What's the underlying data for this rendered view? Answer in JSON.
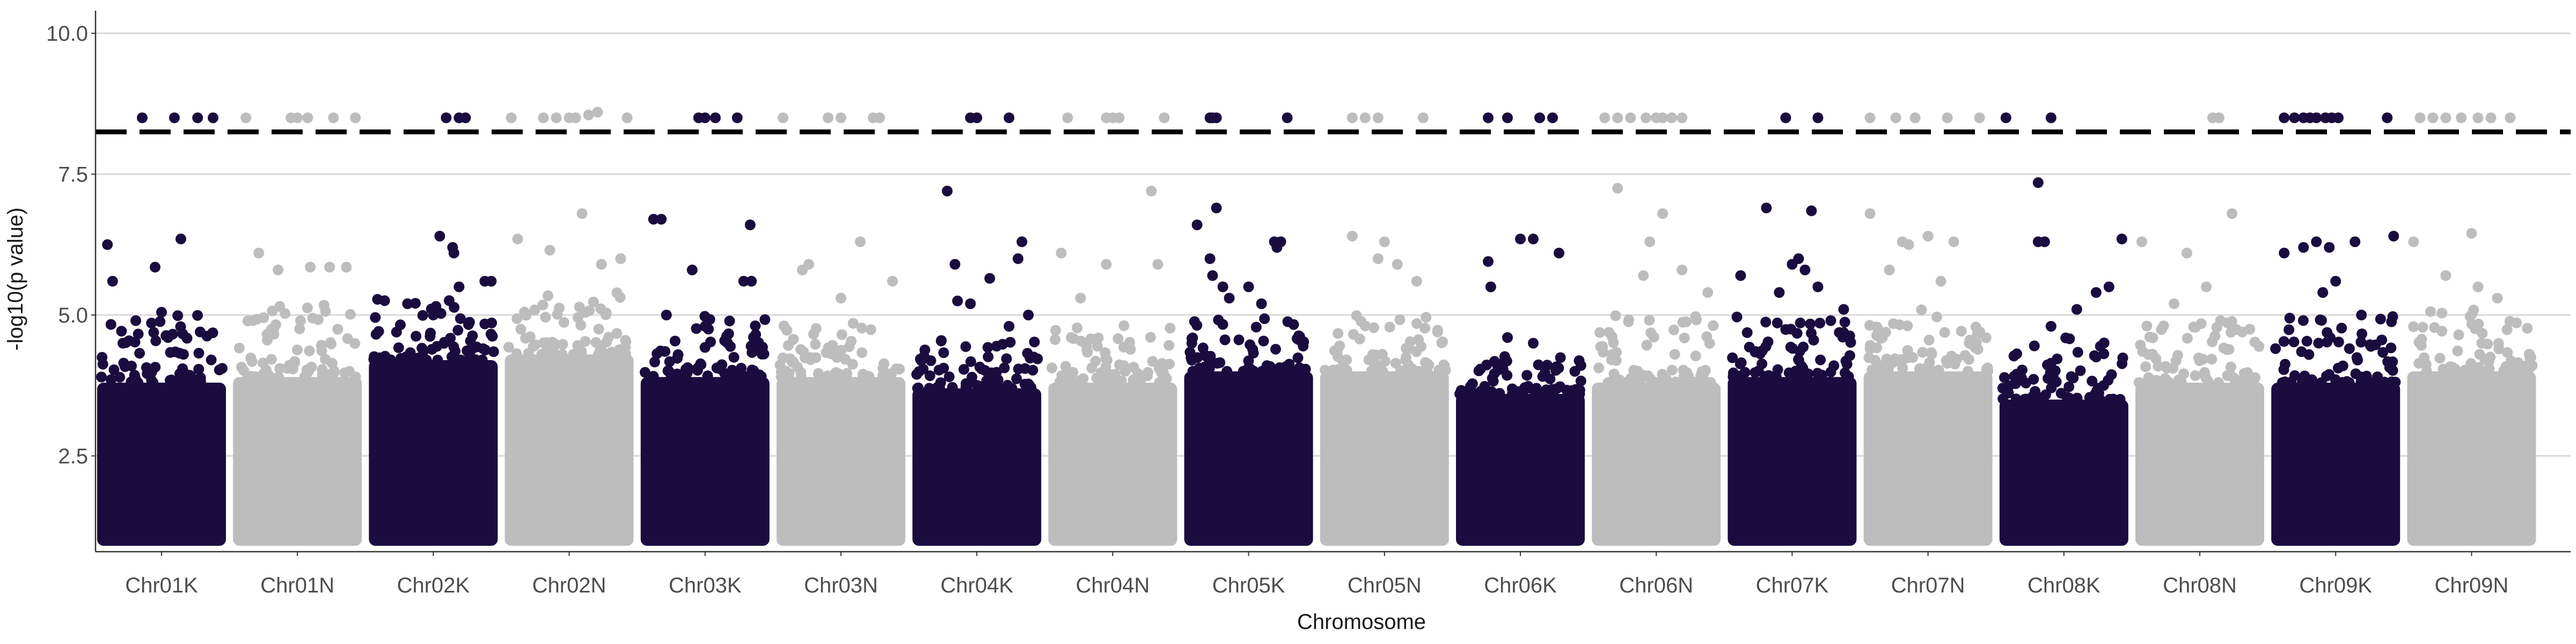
{
  "chart_data": {
    "type": "scatter",
    "title": "",
    "xlabel": "Chromosome",
    "ylabel": "-log10(p value)",
    "ylim": [
      0.8,
      10.4
    ],
    "yticks": [
      2.5,
      5.0,
      7.5,
      10.0
    ],
    "ytick_labels": [
      "2.5",
      "5.0",
      "7.5",
      "10.0"
    ],
    "grid": "horizontal major",
    "legend": "none",
    "threshold": 8.25,
    "point_floor": 1.0,
    "colors": {
      "odd": "#1a0c3f",
      "even": "#bdbdbd",
      "threshold": "#000000",
      "grid": "#d9d9d9",
      "axis": "#333333"
    },
    "categories": [
      "Chr01K",
      "Chr01N",
      "Chr02K",
      "Chr02N",
      "Chr03K",
      "Chr03N",
      "Chr04K",
      "Chr04N",
      "Chr05K",
      "Chr05N",
      "Chr06K",
      "Chr06N",
      "Chr07K",
      "Chr07N",
      "Chr08K",
      "Chr08N",
      "Chr09K",
      "Chr09N"
    ],
    "series": [
      {
        "category": "Chr01K",
        "bulk_top": 3.8,
        "scatter_top": 5.0,
        "outliers": [
          [
            0.08,
            6.25
          ],
          [
            0.65,
            6.35
          ],
          [
            0.12,
            5.6
          ],
          [
            0.45,
            5.85
          ],
          [
            0.5,
            5.05
          ],
          [
            0.3,
            4.9
          ],
          [
            0.8,
            4.7
          ],
          [
            0.55,
            4.6
          ],
          [
            0.2,
            4.5
          ],
          [
            0.35,
            8.5
          ],
          [
            0.78,
            8.5
          ],
          [
            0.6,
            8.5
          ],
          [
            0.9,
            8.5
          ]
        ]
      },
      {
        "category": "Chr01N",
        "bulk_top": 3.9,
        "scatter_top": 5.2,
        "outliers": [
          [
            0.2,
            6.1
          ],
          [
            0.6,
            5.85
          ],
          [
            0.75,
            5.85
          ],
          [
            0.88,
            5.85
          ],
          [
            0.35,
            5.8
          ],
          [
            0.1,
            8.5
          ],
          [
            0.45,
            8.5
          ],
          [
            0.5,
            8.5
          ],
          [
            0.58,
            8.5
          ],
          [
            0.78,
            8.5
          ],
          [
            0.95,
            8.5
          ]
        ]
      },
      {
        "category": "Chr02K",
        "bulk_top": 4.2,
        "scatter_top": 5.3,
        "outliers": [
          [
            0.55,
            6.4
          ],
          [
            0.65,
            6.2
          ],
          [
            0.66,
            6.1
          ],
          [
            0.9,
            5.6
          ],
          [
            0.95,
            5.6
          ],
          [
            0.3,
            5.2
          ],
          [
            0.7,
            5.5
          ],
          [
            0.5,
            5.0
          ],
          [
            0.6,
            8.5
          ],
          [
            0.7,
            8.5
          ],
          [
            0.75,
            8.5
          ]
        ]
      },
      {
        "category": "Chr02N",
        "bulk_top": 4.3,
        "scatter_top": 5.4,
        "outliers": [
          [
            0.1,
            6.35
          ],
          [
            0.35,
            6.15
          ],
          [
            0.6,
            6.8
          ],
          [
            0.75,
            5.9
          ],
          [
            0.9,
            6.0
          ],
          [
            0.05,
            8.5
          ],
          [
            0.3,
            8.5
          ],
          [
            0.4,
            8.5
          ],
          [
            0.5,
            8.5
          ],
          [
            0.55,
            8.5
          ],
          [
            0.65,
            8.55
          ],
          [
            0.72,
            8.6
          ],
          [
            0.95,
            8.5
          ]
        ]
      },
      {
        "category": "Chr03K",
        "bulk_top": 3.9,
        "scatter_top": 5.0,
        "outliers": [
          [
            0.1,
            6.7
          ],
          [
            0.16,
            6.7
          ],
          [
            0.85,
            6.6
          ],
          [
            0.4,
            5.8
          ],
          [
            0.8,
            5.6
          ],
          [
            0.86,
            5.6
          ],
          [
            0.2,
            5.0
          ],
          [
            0.5,
            4.8
          ],
          [
            0.45,
            8.5
          ],
          [
            0.5,
            8.5
          ],
          [
            0.58,
            8.5
          ],
          [
            0.75,
            8.5
          ]
        ]
      },
      {
        "category": "Chr03N",
        "bulk_top": 3.9,
        "scatter_top": 5.0,
        "outliers": [
          [
            0.2,
            5.8
          ],
          [
            0.25,
            5.9
          ],
          [
            0.65,
            6.3
          ],
          [
            0.9,
            5.6
          ],
          [
            0.5,
            5.3
          ],
          [
            0.05,
            8.5
          ],
          [
            0.4,
            8.5
          ],
          [
            0.5,
            8.5
          ],
          [
            0.75,
            8.5
          ],
          [
            0.8,
            8.5
          ]
        ]
      },
      {
        "category": "Chr04K",
        "bulk_top": 3.7,
        "scatter_top": 4.6,
        "outliers": [
          [
            0.27,
            7.2
          ],
          [
            0.33,
            5.9
          ],
          [
            0.35,
            5.25
          ],
          [
            0.45,
            5.2
          ],
          [
            0.6,
            5.65
          ],
          [
            0.85,
            6.3
          ],
          [
            0.82,
            6.0
          ],
          [
            0.9,
            5.0
          ],
          [
            0.75,
            4.8
          ],
          [
            0.45,
            8.5
          ],
          [
            0.5,
            8.5
          ],
          [
            0.75,
            8.5
          ]
        ]
      },
      {
        "category": "Chr04N",
        "bulk_top": 3.8,
        "scatter_top": 4.9,
        "outliers": [
          [
            0.1,
            6.1
          ],
          [
            0.25,
            5.3
          ],
          [
            0.45,
            5.9
          ],
          [
            0.8,
            7.2
          ],
          [
            0.85,
            5.9
          ],
          [
            0.15,
            8.5
          ],
          [
            0.45,
            8.5
          ],
          [
            0.5,
            8.5
          ],
          [
            0.55,
            8.5
          ],
          [
            0.9,
            8.5
          ]
        ]
      },
      {
        "category": "Chr05K",
        "bulk_top": 4.0,
        "scatter_top": 5.0,
        "outliers": [
          [
            0.1,
            6.6
          ],
          [
            0.25,
            6.9
          ],
          [
            0.2,
            6.0
          ],
          [
            0.22,
            5.7
          ],
          [
            0.3,
            5.5
          ],
          [
            0.5,
            5.5
          ],
          [
            0.7,
            6.3
          ],
          [
            0.72,
            6.2
          ],
          [
            0.75,
            6.3
          ],
          [
            0.35,
            5.3
          ],
          [
            0.6,
            5.2
          ],
          [
            0.2,
            8.5
          ],
          [
            0.22,
            8.5
          ],
          [
            0.25,
            8.5
          ],
          [
            0.8,
            8.5
          ]
        ]
      },
      {
        "category": "Chr05N",
        "bulk_top": 4.0,
        "scatter_top": 5.0,
        "outliers": [
          [
            0.25,
            6.4
          ],
          [
            0.5,
            6.3
          ],
          [
            0.45,
            6.0
          ],
          [
            0.6,
            5.9
          ],
          [
            0.75,
            5.6
          ],
          [
            0.25,
            8.5
          ],
          [
            0.35,
            8.5
          ],
          [
            0.45,
            8.5
          ],
          [
            0.8,
            8.5
          ]
        ]
      },
      {
        "category": "Chr06K",
        "bulk_top": 3.6,
        "scatter_top": 4.4,
        "outliers": [
          [
            0.25,
            5.95
          ],
          [
            0.27,
            5.5
          ],
          [
            0.5,
            6.35
          ],
          [
            0.6,
            6.35
          ],
          [
            0.8,
            6.1
          ],
          [
            0.4,
            4.6
          ],
          [
            0.6,
            4.5
          ],
          [
            0.25,
            8.5
          ],
          [
            0.4,
            8.5
          ],
          [
            0.65,
            8.5
          ],
          [
            0.75,
            8.5
          ]
        ]
      },
      {
        "category": "Chr06N",
        "bulk_top": 3.8,
        "scatter_top": 5.0,
        "outliers": [
          [
            0.2,
            7.25
          ],
          [
            0.55,
            6.8
          ],
          [
            0.45,
            6.3
          ],
          [
            0.4,
            5.7
          ],
          [
            0.7,
            5.8
          ],
          [
            0.9,
            5.4
          ],
          [
            0.1,
            8.5
          ],
          [
            0.2,
            8.5
          ],
          [
            0.3,
            8.5
          ],
          [
            0.42,
            8.5
          ],
          [
            0.5,
            8.5
          ],
          [
            0.55,
            8.5
          ],
          [
            0.62,
            8.5
          ],
          [
            0.7,
            8.5
          ]
        ]
      },
      {
        "category": "Chr07K",
        "bulk_top": 3.9,
        "scatter_top": 5.0,
        "outliers": [
          [
            0.1,
            5.7
          ],
          [
            0.3,
            6.9
          ],
          [
            0.65,
            6.85
          ],
          [
            0.5,
            5.9
          ],
          [
            0.55,
            6.0
          ],
          [
            0.6,
            5.8
          ],
          [
            0.7,
            5.5
          ],
          [
            0.4,
            5.4
          ],
          [
            0.9,
            5.1
          ],
          [
            0.8,
            4.9
          ],
          [
            0.45,
            8.5
          ],
          [
            0.7,
            8.5
          ]
        ]
      },
      {
        "category": "Chr07N",
        "bulk_top": 4.0,
        "scatter_top": 5.1,
        "outliers": [
          [
            0.05,
            6.8
          ],
          [
            0.3,
            6.3
          ],
          [
            0.35,
            6.25
          ],
          [
            0.5,
            6.4
          ],
          [
            0.7,
            6.3
          ],
          [
            0.2,
            5.8
          ],
          [
            0.6,
            5.6
          ],
          [
            0.05,
            8.5
          ],
          [
            0.25,
            8.5
          ],
          [
            0.4,
            8.5
          ],
          [
            0.65,
            8.5
          ],
          [
            0.9,
            8.5
          ]
        ]
      },
      {
        "category": "Chr08K",
        "bulk_top": 3.5,
        "scatter_top": 4.6,
        "outliers": [
          [
            0.3,
            7.35
          ],
          [
            0.3,
            6.3
          ],
          [
            0.35,
            6.3
          ],
          [
            0.95,
            6.35
          ],
          [
            0.75,
            5.4
          ],
          [
            0.85,
            5.5
          ],
          [
            0.6,
            5.1
          ],
          [
            0.4,
            4.8
          ],
          [
            0.05,
            8.5
          ],
          [
            0.4,
            8.5
          ]
        ]
      },
      {
        "category": "Chr08N",
        "bulk_top": 3.8,
        "scatter_top": 4.9,
        "outliers": [
          [
            0.05,
            6.3
          ],
          [
            0.4,
            6.1
          ],
          [
            0.75,
            6.8
          ],
          [
            0.55,
            5.5
          ],
          [
            0.3,
            5.2
          ],
          [
            0.6,
            8.5
          ],
          [
            0.65,
            8.5
          ]
        ]
      },
      {
        "category": "Chr09K",
        "bulk_top": 3.8,
        "scatter_top": 5.0,
        "outliers": [
          [
            0.1,
            6.1
          ],
          [
            0.25,
            6.2
          ],
          [
            0.35,
            6.3
          ],
          [
            0.45,
            6.2
          ],
          [
            0.5,
            5.6
          ],
          [
            0.65,
            6.3
          ],
          [
            0.4,
            5.4
          ],
          [
            0.7,
            5.0
          ],
          [
            0.95,
            6.4
          ],
          [
            0.1,
            8.5
          ],
          [
            0.18,
            8.5
          ],
          [
            0.25,
            8.5
          ],
          [
            0.3,
            8.5
          ],
          [
            0.35,
            8.5
          ],
          [
            0.42,
            8.5
          ],
          [
            0.47,
            8.5
          ],
          [
            0.52,
            8.5
          ],
          [
            0.9,
            8.5
          ]
        ]
      },
      {
        "category": "Chr09N",
        "bulk_top": 4.0,
        "scatter_top": 5.1,
        "outliers": [
          [
            0.05,
            6.3
          ],
          [
            0.5,
            6.45
          ],
          [
            0.3,
            5.7
          ],
          [
            0.55,
            5.5
          ],
          [
            0.7,
            5.3
          ],
          [
            0.1,
            8.5
          ],
          [
            0.2,
            8.5
          ],
          [
            0.3,
            8.5
          ],
          [
            0.42,
            8.5
          ],
          [
            0.55,
            8.5
          ],
          [
            0.65,
            8.5
          ],
          [
            0.8,
            8.5
          ]
        ]
      }
    ]
  }
}
